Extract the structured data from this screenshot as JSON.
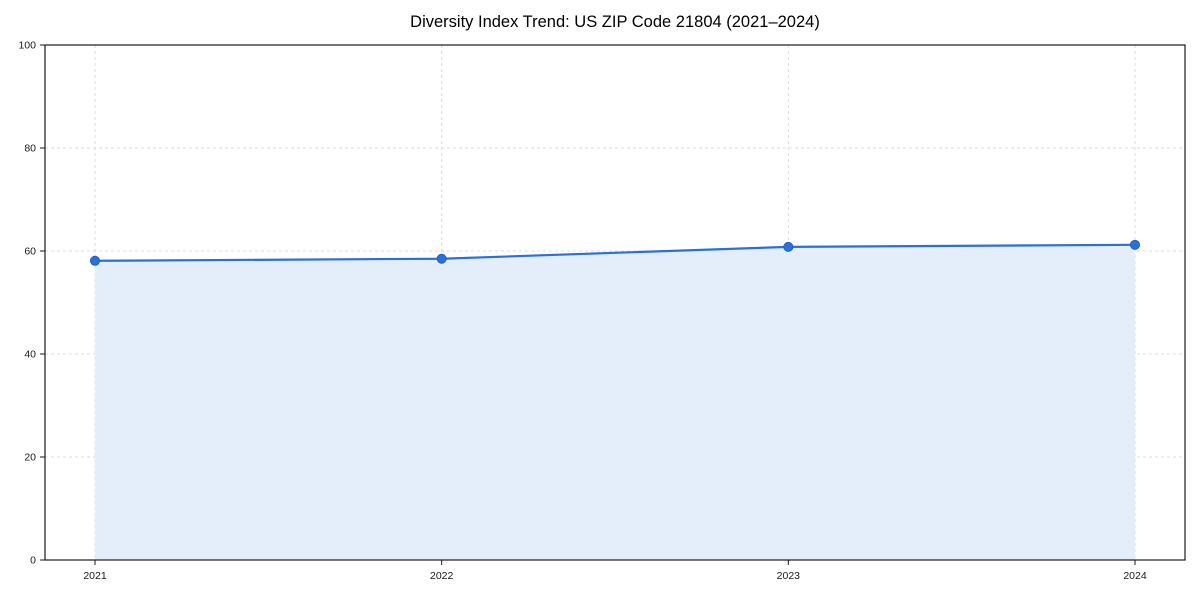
{
  "chart_data": {
    "type": "area",
    "title": "Diversity Index Trend: US ZIP Code 21804 (2021–2024)",
    "x": [
      "2021",
      "2022",
      "2023",
      "2024"
    ],
    "series": [
      {
        "name": "Diversity Index",
        "values": [
          58.1,
          58.5,
          60.8,
          61.2
        ]
      }
    ],
    "xlabel": "",
    "ylabel": "",
    "ylim": [
      0,
      100
    ],
    "yticks": [
      0,
      20,
      40,
      60,
      80,
      100
    ],
    "grid": "dashed, both axes",
    "legend": "none",
    "colors": {
      "line": "#2a6fdb",
      "marker": "#2a6fdb",
      "marker_edge": "#1d5fc9",
      "fill": "#e4eefb",
      "grid": "#dcdcdc",
      "axis": "#1a1a1a",
      "tick_text": "#1a1a1a",
      "title_text": "#000000",
      "background": "#ffffff"
    }
  }
}
